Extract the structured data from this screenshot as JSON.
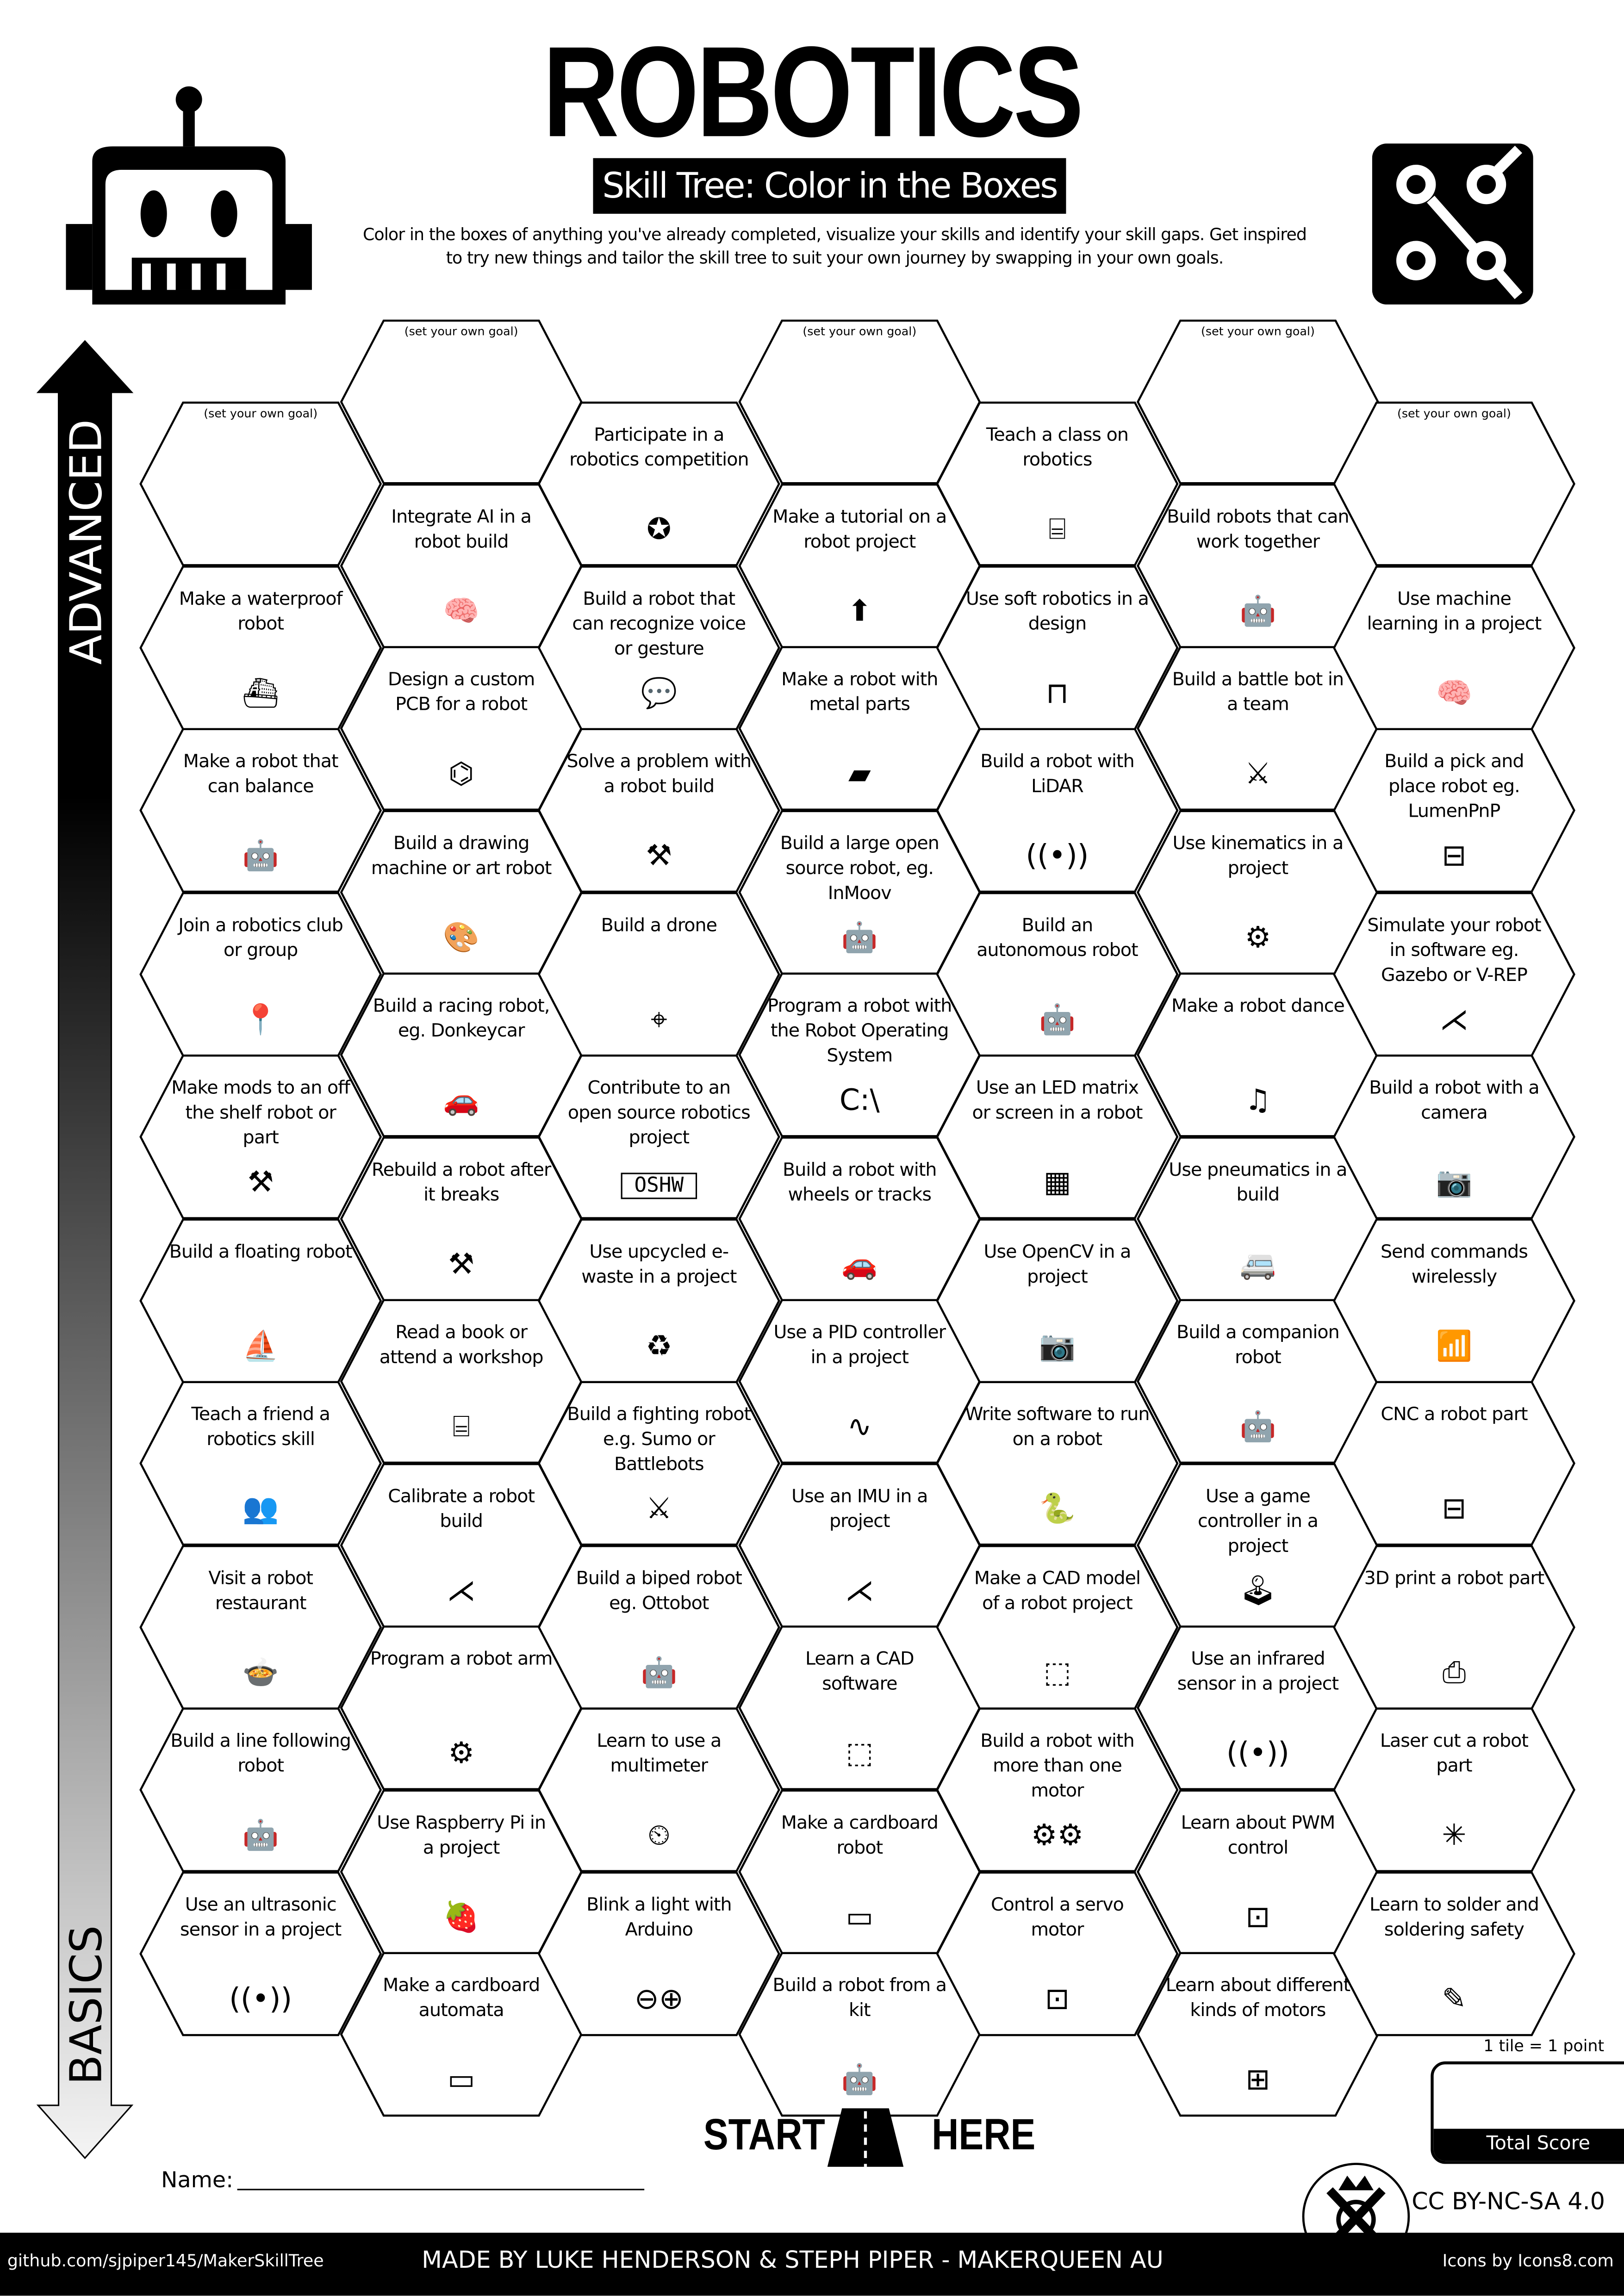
{
  "header": {
    "title": "ROBOTICS",
    "subtitle": "Skill Tree: Color in the Boxes",
    "description_line1": "Color in the boxes of anything you've already completed, visualize your skills and identify your skill gaps.  Get inspired",
    "description_line2": "to try new things and tailor the skill tree to suit your own journey by swapping in your own goals."
  },
  "axis": {
    "top": "ADVANCED",
    "bottom": "BASICS"
  },
  "columns": [
    [
      {
        "goal": "(set your own goal)"
      },
      {
        "label": "Make a waterproof robot",
        "icon": "submarine-icon"
      },
      {
        "label": "Make a robot that can balance",
        "icon": "robot-icon"
      },
      {
        "label": "Join a robotics club or group",
        "icon": "location-pin-icon"
      },
      {
        "label": "Make mods to an off the shelf robot or part",
        "icon": "tools-icon"
      },
      {
        "label": "Build a floating robot",
        "icon": "sailboat-icon"
      },
      {
        "label": "Teach a friend a robotics skill",
        "icon": "people-laptop-icon"
      },
      {
        "label": "Visit a robot restaurant",
        "icon": "food-icon"
      },
      {
        "label": "Build a line following robot",
        "icon": "robot-icon"
      },
      {
        "label": "Use an ultrasonic sensor in a project",
        "icon": "signal-icon"
      }
    ],
    [
      {
        "goal": "(set your own goal)"
      },
      {
        "label": "Integrate AI in a robot build",
        "icon": "brain-icon"
      },
      {
        "label": "Design a custom PCB for a robot",
        "icon": "circuit-icon"
      },
      {
        "label": "Build a drawing machine or art robot",
        "icon": "easel-icon"
      },
      {
        "label": "Build a racing robot, eg. Donkeycar",
        "icon": "car-icon"
      },
      {
        "label": "Rebuild a robot after it breaks",
        "icon": "tools-icon"
      },
      {
        "label": "Read a book or attend a workshop",
        "icon": "teacher-icon"
      },
      {
        "label": "Calibrate a robot build",
        "icon": "axes-icon"
      },
      {
        "label": "Program a robot arm",
        "icon": "robot-arm-icon"
      },
      {
        "label": "Use Raspberry Pi in a project",
        "icon": "raspberry-icon"
      },
      {
        "label": "Make a cardboard automata",
        "icon": "conveyor-icon"
      }
    ],
    [
      {
        "label": "Participate in a robotics competition",
        "icon": "award-icon"
      },
      {
        "label": "Build a robot that can recognize voice or gesture",
        "icon": "chat-icon"
      },
      {
        "label": "Solve a problem with a robot build",
        "icon": "tools-icon"
      },
      {
        "label": "Build a drone",
        "icon": "drone-icon"
      },
      {
        "label": "Contribute to an open source robotics project",
        "icon": "oshw-icon",
        "icon_text": "OSHW"
      },
      {
        "label": "Use upcycled e-waste in a project",
        "icon": "recycle-icon"
      },
      {
        "label": "Build a fighting robot e.g. Sumo or Battlebots",
        "icon": "swords-icon"
      },
      {
        "label": "Build a biped robot eg. Ottobot",
        "icon": "robot-icon"
      },
      {
        "label": "Learn to use a multimeter",
        "icon": "multimeter-icon"
      },
      {
        "label": "Blink a light with Arduino",
        "icon": "arduino-icon"
      }
    ],
    [
      {
        "goal": "(set your own goal)"
      },
      {
        "label": "Make a tutorial on a robot project",
        "icon": "upload-icon"
      },
      {
        "label": "Make a robot with metal parts",
        "icon": "metal-bar-icon"
      },
      {
        "label": "Build a large open source robot, eg. InMoov",
        "icon": "robot-icon"
      },
      {
        "label": "Program a robot with the Robot Operating System",
        "icon": "terminal-icon"
      },
      {
        "label": "Build a robot with wheels or tracks",
        "icon": "car-icon"
      },
      {
        "label": "Use a PID controller in a project",
        "icon": "graph-icon"
      },
      {
        "label": "Use an IMU in a project",
        "icon": "axes-icon"
      },
      {
        "label": "Learn a CAD software",
        "icon": "cube-icon"
      },
      {
        "label": "Make a cardboard robot",
        "icon": "conveyor-icon"
      },
      {
        "label": "Build a robot from a kit",
        "icon": "robot-icon"
      }
    ],
    [
      {
        "label": "Teach a class on robotics",
        "icon": "teacher-icon"
      },
      {
        "label": "Use soft robotics in a design",
        "icon": "gripper-icon"
      },
      {
        "label": "Build a robot with LiDAR",
        "icon": "signal-icon"
      },
      {
        "label": "Build an autonomous robot",
        "icon": "robot-icon"
      },
      {
        "label": "Use an LED matrix or screen in a robot",
        "icon": "grid-icon"
      },
      {
        "label": "Use OpenCV in a project",
        "icon": "camera-icon"
      },
      {
        "label": "Write software to run on a robot",
        "icon": "python-icon"
      },
      {
        "label": "Make a CAD model of a robot project",
        "icon": "cube-icon"
      },
      {
        "label": "Build a robot with more than one motor",
        "icon": "motors-icon"
      },
      {
        "label": "Control a servo motor",
        "icon": "servo-icon"
      }
    ],
    [
      {
        "goal": "(set your own goal)"
      },
      {
        "label": "Build robots that can work together",
        "icon": "robot-icon"
      },
      {
        "label": "Build a battle bot in a team",
        "icon": "swords-icon"
      },
      {
        "label": "Use kinematics in a project",
        "icon": "robot-arm-icon"
      },
      {
        "label": "Make a robot dance",
        "icon": "dance-icon"
      },
      {
        "label": "Use pneumatics in a build",
        "icon": "van-icon"
      },
      {
        "label": "Build a companion robot",
        "icon": "robot-icon"
      },
      {
        "label": "Use a game controller in a project",
        "icon": "joystick-icon"
      },
      {
        "label": "Use an infrared sensor in a project",
        "icon": "signal-icon"
      },
      {
        "label": "Learn about PWM control",
        "icon": "servo-icon"
      },
      {
        "label": "Learn about different kinds of motors",
        "icon": "motor-icon"
      }
    ],
    [
      {
        "goal": "(set your own goal)"
      },
      {
        "label": "Use machine learning in a project",
        "icon": "brain-icon"
      },
      {
        "label": "Build a pick and place robot eg. LumenPnP",
        "icon": "machine-icon"
      },
      {
        "label": "Simulate your robot in software eg. Gazebo or V-REP",
        "icon": "axes-icon"
      },
      {
        "label": "Build a robot with a camera",
        "icon": "camera-icon"
      },
      {
        "label": "Send commands wirelessly",
        "icon": "wifi-icon"
      },
      {
        "label": "CNC a robot part",
        "icon": "machine-icon"
      },
      {
        "label": "3D print a robot part",
        "icon": "printer-icon"
      },
      {
        "label": "Laser cut a robot part",
        "icon": "laser-icon"
      },
      {
        "label": "Learn to solder and soldering safety",
        "icon": "soldering-iron-icon"
      }
    ]
  ],
  "bottom": {
    "start": "START",
    "here": "HERE",
    "name_label": "Name:",
    "score_note": "1 tile = 1 point",
    "score_label": "Total Score",
    "license": "CC BY-NC-SA 4.0"
  },
  "footer": {
    "github": "github.com/sjpiper145/MakerSkillTree",
    "credits": "MADE BY LUKE HENDERSON & STEPH PIPER  -  MAKERQUEEN AU",
    "icons_credit": "Icons by Icons8.com"
  }
}
